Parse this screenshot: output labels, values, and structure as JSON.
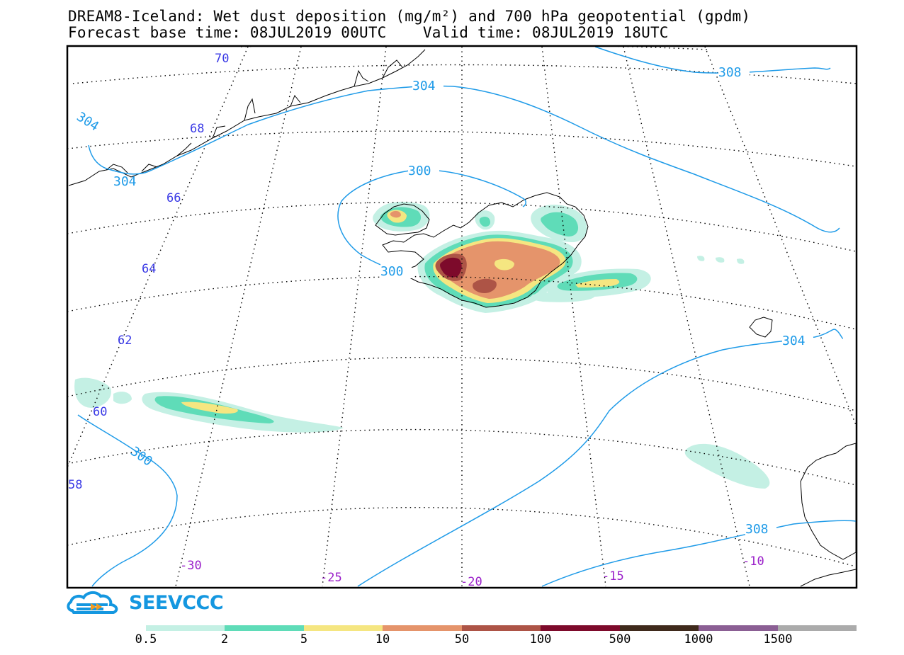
{
  "header": {
    "title_line1": "DREAM8-Iceland: Wet dust deposition (mg/m²) and 700 hPa geopotential (gpdm)",
    "title_line2": "Forecast base time: 08JUL2019 00UTC    Valid time: 08JUL2019 18UTC"
  },
  "map": {
    "latitude_labels": [
      "70",
      "68",
      "66",
      "64",
      "62",
      "60",
      "58"
    ],
    "longitude_labels": [
      "-30",
      "-25",
      "-20",
      "-15",
      "-10"
    ],
    "contour_labels": [
      "304",
      "304",
      "304",
      "308",
      "300",
      "300",
      "300",
      "304",
      "308"
    ],
    "colors": {
      "lat_label": "#3a3ae6",
      "lon_label": "#9a1fc9",
      "contour": "#1f9be8",
      "coast": "#000000",
      "grid": "#000000"
    }
  },
  "logo": {
    "text": "SEEVCCC"
  },
  "legend": {
    "levels": [
      "0.5",
      "2",
      "5",
      "10",
      "50",
      "100",
      "500",
      "1000",
      "1500"
    ],
    "colors": [
      "#c4f0e4",
      "#5fdcb8",
      "#f5e681",
      "#e5946b",
      "#ad5446",
      "#7d0a2b",
      "#3f2a1c",
      "#8b5f94",
      "#ababab"
    ]
  }
}
